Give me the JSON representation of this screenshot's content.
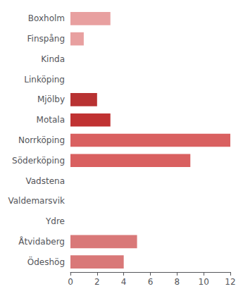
{
  "chart_data": {
    "type": "bar",
    "orientation": "horizontal",
    "categories": [
      "Boxholm",
      "Finspång",
      "Kinda",
      "Linköping",
      "Mjölby",
      "Motala",
      "Norrköping",
      "Söderköping",
      "Vadstena",
      "Valdemarsvik",
      "Ydre",
      "Åtvidaberg",
      "Ödeshög"
    ],
    "values": [
      3,
      1,
      0,
      0,
      2,
      3,
      12,
      9,
      0,
      0,
      0,
      5,
      4
    ],
    "colors": [
      "#e8a0a0",
      "#e8a0a0",
      "#e8a0a0",
      "#e8a0a0",
      "#b83232",
      "#c03232",
      "#d96060",
      "#d96060",
      "#e8a0a0",
      "#e8a0a0",
      "#e8a0a0",
      "#d97878",
      "#d97878"
    ],
    "xlim": [
      0,
      12
    ],
    "xticks": [
      0,
      2,
      4,
      6,
      8,
      10,
      12
    ],
    "grid": false
  }
}
